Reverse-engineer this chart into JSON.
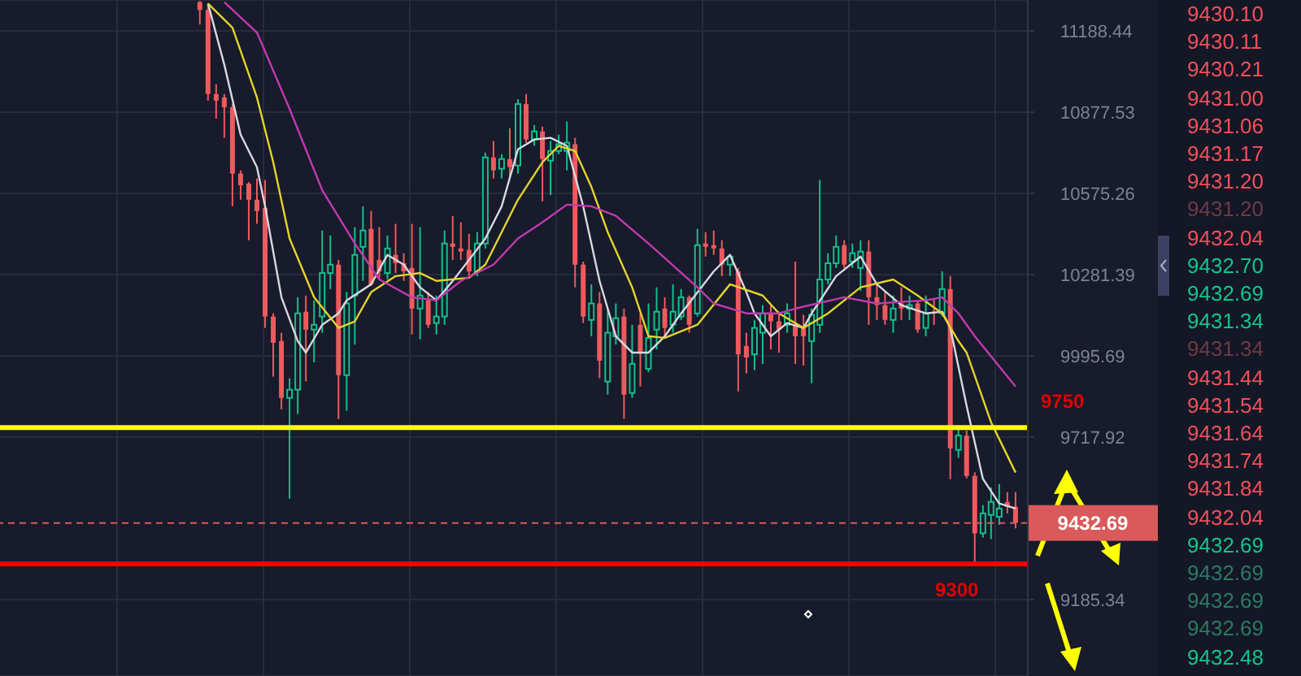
{
  "chart_data": {
    "type": "candlestick",
    "log": true,
    "grid": true,
    "tick_labels": "y",
    "ylim": [
      8945,
      11309
    ],
    "yticks": [
      9185.34,
      9717.92,
      9995.69,
      10281.39,
      10575.26,
      10877.53,
      11188.44
    ],
    "categories": [
      null,
      null,
      null,
      null,
      null,
      null,
      null,
      null,
      null,
      null,
      null,
      null,
      null,
      null,
      null,
      null,
      null,
      null,
      null,
      null,
      null,
      null,
      null,
      null,
      null,
      null,
      null,
      null,
      null,
      null,
      null,
      null,
      null,
      null,
      null,
      null,
      null,
      null,
      null,
      null,
      null,
      null,
      null,
      null,
      null,
      null,
      null,
      null,
      null,
      null,
      null,
      null,
      null,
      null,
      null,
      null,
      null,
      null,
      null,
      null,
      null,
      null,
      null,
      null,
      null,
      null,
      null,
      null,
      null,
      null,
      null,
      null,
      null,
      null,
      null,
      null,
      null,
      null,
      null,
      null,
      null,
      null,
      null,
      null,
      null,
      null,
      null,
      null,
      null,
      null,
      null,
      null,
      null,
      null,
      null,
      null,
      null,
      null,
      null,
      null,
      null,
      null,
      null,
      null,
      null,
      null,
      null,
      null,
      null,
      null,
      null,
      null,
      null,
      null,
      null,
      null,
      null,
      null,
      null,
      null,
      null,
      null,
      null,
      null,
      null,
      null
    ],
    "ohlc": [
      null,
      null,
      null,
      null,
      null,
      null,
      null,
      null,
      null,
      null,
      null,
      null,
      null,
      null,
      null,
      null,
      null,
      null,
      null,
      null,
      null,
      null,
      null,
      null,
      [
        11301,
        11305,
        11213,
        11270
      ],
      [
        11270,
        11295,
        10921,
        10946
      ],
      [
        10946,
        10983,
        10853,
        10921
      ],
      [
        10933,
        10946,
        10781,
        10896
      ],
      [
        10896,
        10908,
        10528,
        10648
      ],
      [
        10648,
        10660,
        10552,
        10605
      ],
      [
        10611,
        10617,
        10405,
        10552
      ],
      [
        10552,
        10630,
        10464,
        10511
      ],
      [
        10522,
        10624,
        10093,
        10133
      ],
      [
        10133,
        10144,
        9924,
        10041
      ],
      [
        10047,
        10076,
        9812,
        9851
      ],
      [
        9851,
        9918,
        9513,
        9879
      ],
      [
        9879,
        10201,
        9796,
        10144
      ],
      [
        10150,
        10207,
        9907,
        10087
      ],
      [
        10087,
        10190,
        9973,
        10104
      ],
      [
        10133,
        10440,
        10076,
        10287
      ],
      [
        10287,
        10422,
        10230,
        10317
      ],
      [
        10317,
        10334,
        9779,
        9929
      ],
      [
        9929,
        10219,
        9807,
        10179
      ],
      [
        10207,
        10452,
        10035,
        10352
      ],
      [
        10381,
        10528,
        10259,
        10440
      ],
      [
        10446,
        10511,
        10241,
        10247
      ],
      [
        10334,
        10452,
        10264,
        10293
      ],
      [
        10287,
        10422,
        10264,
        10375
      ],
      [
        10352,
        10464,
        10287,
        10322
      ],
      [
        10322,
        10358,
        10259,
        10293
      ],
      [
        10305,
        10464,
        10070,
        10161
      ],
      [
        10161,
        10452,
        10053,
        10207
      ],
      [
        10190,
        10219,
        10093,
        10104
      ],
      [
        10110,
        10207,
        10070,
        10133
      ],
      [
        10133,
        10440,
        10104,
        10393
      ],
      [
        10393,
        10493,
        10334,
        10381
      ],
      [
        10375,
        10470,
        10334,
        10364
      ],
      [
        10370,
        10428,
        10276,
        10293
      ],
      [
        10293,
        10434,
        10276,
        10393
      ],
      [
        10393,
        10726,
        10375,
        10708
      ],
      [
        10708,
        10769,
        10630,
        10660
      ],
      [
        10666,
        10720,
        10630,
        10702
      ],
      [
        10702,
        10817,
        10630,
        10672
      ],
      [
        10678,
        10927,
        10648,
        10908
      ],
      [
        10908,
        10946,
        10763,
        10775
      ],
      [
        10775,
        10829,
        10751,
        10805
      ],
      [
        10805,
        10823,
        10546,
        10702
      ],
      [
        10696,
        10769,
        10569,
        10732
      ],
      [
        10732,
        10793,
        10720,
        10757
      ],
      [
        10732,
        10842,
        10660,
        10763
      ],
      [
        10757,
        10781,
        10236,
        10317
      ],
      [
        10317,
        10328,
        10110,
        10133
      ],
      [
        10121,
        10247,
        10064,
        10179
      ],
      [
        10179,
        10219,
        9918,
        9979
      ],
      [
        9907,
        10161,
        9862,
        10076
      ],
      [
        10064,
        10179,
        10035,
        10127
      ],
      [
        10133,
        10161,
        9779,
        9862
      ],
      [
        9868,
        10104,
        9851,
        9968
      ],
      [
        10104,
        10144,
        9890,
        10007
      ],
      [
        9951,
        10179,
        9940,
        10058
      ],
      [
        10087,
        10236,
        10018,
        10150
      ],
      [
        10161,
        10201,
        10064,
        10093
      ],
      [
        10104,
        10247,
        10076,
        10150
      ],
      [
        10133,
        10230,
        10121,
        10201
      ],
      [
        10201,
        10207,
        10076,
        10104
      ],
      [
        10144,
        10446,
        10133,
        10387
      ],
      [
        10393,
        10434,
        10346,
        10381
      ],
      [
        10387,
        10440,
        10352,
        10375
      ],
      [
        10375,
        10405,
        10276,
        10317
      ],
      [
        10317,
        10352,
        10276,
        10346
      ],
      [
        10293,
        10305,
        9873,
        10001
      ],
      [
        10030,
        10076,
        9935,
        9990
      ],
      [
        10001,
        10121,
        9946,
        10093
      ],
      [
        10076,
        10173,
        9968,
        10144
      ],
      [
        10144,
        10173,
        10018,
        10116
      ],
      [
        10116,
        10150,
        10007,
        10087
      ],
      [
        10104,
        10179,
        10076,
        10144
      ],
      [
        10104,
        10328,
        9968,
        10064
      ],
      [
        10093,
        10139,
        9962,
        10064
      ],
      [
        10047,
        10161,
        9901,
        10139
      ],
      [
        10104,
        10624,
        10076,
        10264
      ],
      [
        10264,
        10358,
        10247,
        10322
      ],
      [
        10322,
        10422,
        10305,
        10381
      ],
      [
        10387,
        10405,
        10305,
        10317
      ],
      [
        10328,
        10393,
        10305,
        10358
      ],
      [
        10305,
        10405,
        10224,
        10364
      ],
      [
        10364,
        10405,
        10104,
        10201
      ],
      [
        10201,
        10247,
        10121,
        10173
      ],
      [
        10173,
        10219,
        10104,
        10121
      ],
      [
        10121,
        10207,
        10076,
        10161
      ],
      [
        10179,
        10236,
        10121,
        10161
      ],
      [
        10161,
        10207,
        10121,
        10173
      ],
      [
        10179,
        10190,
        10076,
        10087
      ],
      [
        10093,
        10207,
        10064,
        10144
      ],
      [
        10150,
        10196,
        10104,
        10144
      ],
      [
        10144,
        10293,
        10133,
        10230
      ],
      [
        10230,
        10276,
        9577,
        9680
      ],
      [
        9675,
        9757,
        9648,
        9723
      ],
      [
        9723,
        9740,
        9580,
        9588
      ],
      [
        9588,
        9600,
        9306,
        9399
      ],
      [
        9399,
        9491,
        9385,
        9464
      ],
      [
        9459,
        9550,
        9380,
        9502
      ],
      [
        9453,
        9561,
        9427,
        9480
      ],
      [
        9502,
        9534,
        9464,
        9486
      ],
      [
        9486,
        9534,
        9415,
        9433
      ],
      null
    ],
    "series": [
      {
        "type": "line",
        "color": "#d8d8e0",
        "values": [
          null,
          null,
          null,
          null,
          null,
          null,
          null,
          null,
          null,
          null,
          null,
          null,
          null,
          null,
          null,
          null,
          null,
          null,
          null,
          null,
          null,
          null,
          null,
          null,
          null,
          11295,
          null,
          11058,
          null,
          10793,
          null,
          10672,
          10528,
          null,
          10201,
          null,
          10047,
          10007,
          null,
          10104,
          null,
          10144,
          10190,
          null,
          null,
          10247,
          null,
          10352,
          null,
          10317,
          null,
          10236,
          null,
          10190,
          null,
          10259,
          null,
          10334,
          null,
          10411,
          null,
          10528,
          null,
          10738,
          null,
          10775,
          null,
          10781,
          null,
          10751,
          null,
          10528,
          null,
          10259,
          null,
          10064,
          null,
          10007,
          null,
          10007,
          null,
          10064,
          null,
          10144,
          null,
          null,
          null,
          10293,
          null,
          10352,
          null,
          10219,
          10144,
          null,
          10064,
          null,
          10110,
          null,
          10093,
          10144,
          null,
          null,
          10276,
          null,
          null,
          10346,
          null,
          10247,
          null,
          null,
          10173,
          null,
          null,
          10144,
          null,
          10150,
          10093,
          null,
          9824,
          null,
          9578,
          null,
          9497,
          null,
          9480,
          null
        ]
      },
      {
        "type": "line",
        "color": "#e3d42a",
        "values": [
          null,
          null,
          null,
          null,
          null,
          null,
          null,
          null,
          null,
          null,
          null,
          null,
          null,
          null,
          null,
          null,
          null,
          null,
          null,
          null,
          null,
          null,
          null,
          null,
          null,
          11295,
          null,
          null,
          11201,
          null,
          null,
          10933,
          null,
          10690,
          null,
          10411,
          null,
          null,
          10201,
          null,
          null,
          10093,
          null,
          10116,
          null,
          10219,
          null,
          null,
          10276,
          null,
          null,
          10287,
          null,
          10259,
          null,
          null,
          null,
          10270,
          null,
          10317,
          null,
          null,
          10493,
          10552,
          null,
          null,
          10690,
          null,
          10751,
          null,
          10732,
          null,
          10599,
          null,
          10434,
          null,
          null,
          10236,
          null,
          10064,
          null,
          10058,
          null,
          null,
          null,
          10104,
          null,
          null,
          null,
          10247,
          null,
          null,
          null,
          10207,
          null,
          10144,
          null,
          null,
          10093,
          null,
          null,
          10144,
          null,
          null,
          null,
          10236,
          null,
          null,
          null,
          10264,
          null,
          null,
          10207,
          null,
          null,
          10144,
          null,
          10047,
          10007,
          null,
          null,
          9768,
          null,
          null,
          9599,
          null
        ]
      },
      {
        "type": "line",
        "color": "#c13aae",
        "values": [
          null,
          null,
          null,
          null,
          null,
          null,
          null,
          null,
          null,
          null,
          null,
          null,
          null,
          null,
          null,
          null,
          null,
          null,
          null,
          null,
          null,
          null,
          null,
          null,
          null,
          null,
          null,
          11301,
          null,
          null,
          null,
          11182,
          null,
          null,
          null,
          10890,
          null,
          null,
          null,
          10587,
          null,
          null,
          null,
          10393,
          null,
          null,
          10264,
          null,
          null,
          null,
          10201,
          null,
          null,
          10190,
          null,
          null,
          10259,
          null,
          null,
          null,
          10317,
          null,
          null,
          10411,
          null,
          null,
          10470,
          null,
          null,
          10534,
          null,
          null,
          10528,
          null,
          null,
          10493,
          null,
          null,
          null,
          10393,
          null,
          null,
          null,
          null,
          null,
          10236,
          null,
          10179,
          null,
          null,
          null,
          10144,
          null,
          null,
          null,
          10144,
          null,
          10161,
          null,
          null,
          null,
          null,
          null,
          10201,
          null,
          null,
          null,
          10179,
          null,
          null,
          null,
          null,
          null,
          10190,
          null,
          10201,
          null,
          10144,
          null,
          10064,
          null,
          null,
          null,
          null,
          9890,
          null
        ]
      }
    ],
    "ref_lines": [
      {
        "axis": "y",
        "value": 9750,
        "label": "9750",
        "color": "#ffff00"
      },
      {
        "axis": "y",
        "value": 9300,
        "label": "9300",
        "color": "#ff0000"
      },
      {
        "axis": "y",
        "value": 9432.69,
        "label": "9432.69",
        "color": "#d85a5a",
        "line_style": "dashed"
      }
    ],
    "annotations": [
      "9430.10",
      "9430.11",
      "9430.21",
      "9431.00",
      "9431.06",
      "9431.17",
      "9431.20",
      "9431.20",
      "9432.04",
      "9432.70",
      "9432.69",
      "9431.34",
      "9431.34",
      "9431.44",
      "9431.54",
      "9431.64",
      "9431.74",
      "9431.84",
      "9432.04",
      "9432.69",
      "9432.69",
      "9432.69",
      "9432.69",
      "9432.48"
    ]
  }
}
